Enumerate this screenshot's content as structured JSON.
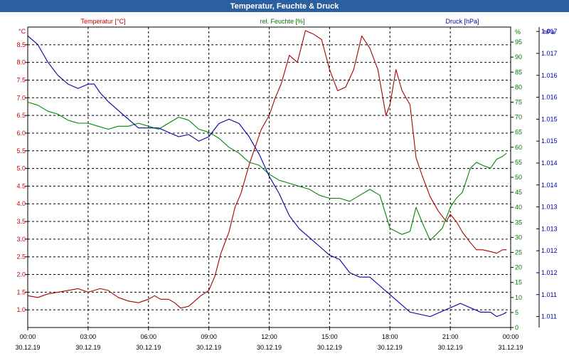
{
  "chart_data": {
    "type": "line",
    "title": "Temperatur, Feuchte & Druck",
    "x_ticks": [
      {
        "time": "00:00",
        "date": "30.12.19"
      },
      {
        "time": "03:00",
        "date": "30.12.19"
      },
      {
        "time": "06:00",
        "date": "30.12.19"
      },
      {
        "time": "09:00",
        "date": "30.12.19"
      },
      {
        "time": "12:00",
        "date": "30.12.19"
      },
      {
        "time": "15:00",
        "date": "30.12.19"
      },
      {
        "time": "18:00",
        "date": "30.12.19"
      },
      {
        "time": "21:00",
        "date": "30.12.19"
      },
      {
        "time": "00:00",
        "date": "31.12.19"
      }
    ],
    "xlim_hours": [
      0,
      24
    ],
    "grid": true,
    "axes": {
      "temperature": {
        "label": "Temperatur [°C]",
        "unit": "°C",
        "ylim": [
          0.5,
          9.0
        ],
        "ticks": [
          "1.0",
          "1.5",
          "2.0",
          "2.5",
          "3.0",
          "3.5",
          "4.0",
          "4.5",
          "5.0",
          "5.5",
          "6.0",
          "6.5",
          "7.0",
          "7.5",
          "8.0",
          "8.5"
        ],
        "color": "#cc0000"
      },
      "humidity": {
        "label": "rel. Feuchte [%]",
        "unit": "%",
        "ylim": [
          0,
          100
        ],
        "ticks": [
          "0",
          "5",
          "10",
          "15",
          "20",
          "25",
          "30",
          "35",
          "40",
          "45",
          "50",
          "55",
          "60",
          "65",
          "70",
          "75",
          "80",
          "85",
          "90",
          "95"
        ],
        "color": "#007700"
      },
      "pressure": {
        "label": "Druck [hPa]",
        "unit": "hPa",
        "ylim": [
          1010.75,
          1017.6
        ],
        "ticks": [
          "1.011",
          "1.011",
          "1.012",
          "1.012",
          "1.013",
          "1.013",
          "1.014",
          "1.014",
          "1.015",
          "1.015",
          "1.016",
          "1.016",
          "1.017",
          "1.017"
        ],
        "color": "#0000aa"
      }
    },
    "series": [
      {
        "name": "Temperatur [°C]",
        "axis": "temperature",
        "color": "#aa0000",
        "x": [
          0,
          0.5,
          1,
          1.5,
          2,
          2.5,
          3,
          3.3,
          3.6,
          4,
          4.5,
          5,
          5.5,
          6,
          6.3,
          6.6,
          7,
          7.3,
          7.6,
          8,
          8.3,
          8.6,
          9,
          9.3,
          9.6,
          10,
          10.3,
          10.6,
          11,
          11.3,
          11.6,
          12,
          12.3,
          12.6,
          13,
          13.4,
          13.8,
          14.2,
          14.6,
          15,
          15.4,
          15.8,
          16.2,
          16.6,
          17,
          17.4,
          17.8,
          18,
          18.3,
          18.6,
          19,
          19.3,
          19.6,
          20,
          20.4,
          20.8,
          21,
          21.3,
          21.6,
          22,
          22.3,
          22.6,
          23,
          23.3,
          23.6,
          23.8
        ],
        "y": [
          1.4,
          1.35,
          1.45,
          1.5,
          1.55,
          1.6,
          1.5,
          1.55,
          1.6,
          1.55,
          1.35,
          1.25,
          1.2,
          1.3,
          1.4,
          1.3,
          1.3,
          1.2,
          1.05,
          1.1,
          1.25,
          1.4,
          1.55,
          1.95,
          2.6,
          3.2,
          3.9,
          4.3,
          5.1,
          5.6,
          6.1,
          6.5,
          7.0,
          7.4,
          8.2,
          8.0,
          8.9,
          8.8,
          8.65,
          7.8,
          7.2,
          7.3,
          7.8,
          8.75,
          8.4,
          7.8,
          6.5,
          6.8,
          7.8,
          7.2,
          6.8,
          5.3,
          4.8,
          4.2,
          3.8,
          3.5,
          3.7,
          3.5,
          3.2,
          2.9,
          2.7,
          2.7,
          2.65,
          2.6,
          2.7,
          2.7
        ]
      },
      {
        "name": "rel. Feuchte [%]",
        "axis": "humidity",
        "color": "#008800",
        "x": [
          0,
          0.5,
          1,
          1.5,
          2,
          2.5,
          3,
          3.5,
          4,
          4.5,
          5,
          5.5,
          6,
          6.5,
          7,
          7.5,
          8,
          8.5,
          9,
          9.5,
          10,
          10.5,
          11,
          11.5,
          12,
          12.5,
          13,
          13.5,
          14,
          14.5,
          15,
          15.5,
          16,
          16.5,
          17,
          17.5,
          18,
          18.3,
          18.6,
          19,
          19.3,
          19.6,
          20,
          20.3,
          20.6,
          21,
          21.3,
          21.6,
          22,
          22.3,
          22.6,
          23,
          23.3,
          23.6,
          23.8
        ],
        "y": [
          75,
          74,
          72,
          71,
          69,
          68,
          68,
          67,
          66,
          67,
          67,
          68,
          67,
          66,
          68,
          70,
          69,
          66,
          65,
          63,
          60,
          58,
          55,
          54,
          51,
          49,
          48,
          47,
          46,
          44,
          43,
          43,
          42,
          44,
          46,
          44,
          33,
          32,
          31,
          32,
          40,
          35,
          29,
          31,
          33,
          40,
          43,
          45,
          53,
          55,
          54,
          53,
          56,
          57,
          58
        ]
      },
      {
        "name": "Druck [hPa]",
        "axis": "pressure",
        "color": "#0000aa",
        "x": [
          0,
          0.5,
          1,
          1.5,
          2,
          2.5,
          3,
          3.3,
          3.6,
          4,
          4.5,
          5,
          5.5,
          6,
          6.5,
          7,
          7.5,
          8,
          8.5,
          9,
          9.5,
          10,
          10.5,
          11,
          11.5,
          12,
          12.5,
          13,
          13.5,
          14,
          14.5,
          15,
          15.5,
          16,
          16.5,
          17,
          17.5,
          18,
          18.5,
          19,
          19.5,
          20,
          20.5,
          21,
          21.5,
          22,
          22.5,
          23,
          23.3,
          23.6,
          23.8
        ],
        "y": [
          1017.4,
          1017.2,
          1016.8,
          1016.5,
          1016.3,
          1016.2,
          1016.3,
          1016.3,
          1016.1,
          1015.9,
          1015.7,
          1015.5,
          1015.3,
          1015.3,
          1015.3,
          1015.2,
          1015.1,
          1015.15,
          1015.0,
          1015.1,
          1015.4,
          1015.5,
          1015.4,
          1015.1,
          1014.7,
          1014.2,
          1013.8,
          1013.3,
          1013.0,
          1012.8,
          1012.6,
          1012.4,
          1012.3,
          1012.0,
          1011.9,
          1011.9,
          1011.7,
          1011.5,
          1011.3,
          1011.1,
          1011.05,
          1011.0,
          1011.1,
          1011.2,
          1011.3,
          1011.2,
          1011.1,
          1011.1,
          1011.0,
          1011.05,
          1011.1
        ]
      }
    ]
  }
}
